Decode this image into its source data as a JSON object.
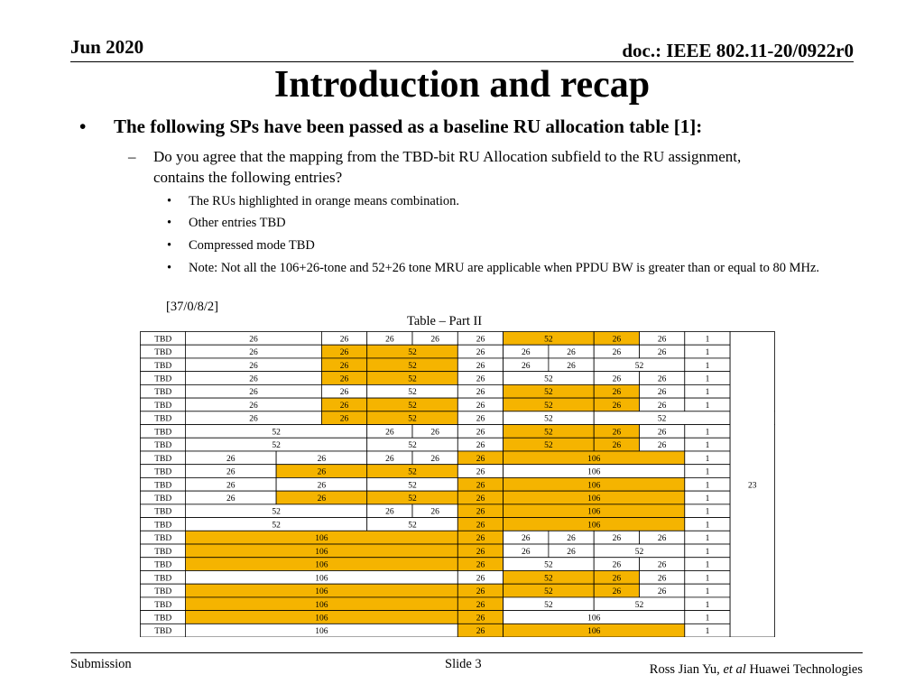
{
  "header": {
    "date": "Jun 2020",
    "doc": "doc.: IEEE 802.11-20/0922r0"
  },
  "title": "Introduction and recap",
  "bullet1": "The following SPs have been passed as a baseline RU allocation table [1]:",
  "bullet2": "Do you agree that the mapping from the TBD-bit RU Allocation subfield to the RU assignment, contains the following entries?",
  "sub_bullets": [
    "The RUs highlighted in orange means combination.",
    "Other entries TBD",
    "Compressed mode TBD",
    "Note: Not all the 106+26-tone and 52+26 tone MRU are applicable when PPDU BW is greater than or equal to 80 MHz."
  ],
  "vote_code": "[37/0/8/2]",
  "table": {
    "caption": "Table – Part II",
    "merged_count": "23",
    "highlight_color": "#f5b400",
    "rows": [
      [
        [
          "TBD",
          1,
          0
        ],
        [
          "26",
          3,
          0
        ],
        [
          "26",
          1,
          0
        ],
        [
          "26",
          1,
          0
        ],
        [
          "26",
          1,
          0
        ],
        [
          "26",
          1,
          0
        ],
        [
          "52",
          2,
          1
        ],
        [
          "26",
          1,
          1
        ],
        [
          "26",
          1,
          0
        ],
        [
          "1",
          1,
          0
        ]
      ],
      [
        [
          "TBD",
          1,
          0
        ],
        [
          "26",
          3,
          0
        ],
        [
          "26",
          1,
          1
        ],
        [
          "52",
          2,
          1
        ],
        [
          "26",
          1,
          0
        ],
        [
          "26",
          1,
          0
        ],
        [
          "26",
          1,
          0
        ],
        [
          "26",
          1,
          0
        ],
        [
          "26",
          1,
          0
        ],
        [
          "1",
          1,
          0
        ]
      ],
      [
        [
          "TBD",
          1,
          0
        ],
        [
          "26",
          3,
          0
        ],
        [
          "26",
          1,
          1
        ],
        [
          "52",
          2,
          1
        ],
        [
          "26",
          1,
          0
        ],
        [
          "26",
          1,
          0
        ],
        [
          "26",
          1,
          0
        ],
        [
          "52",
          2,
          0
        ],
        [
          "1",
          1,
          0
        ]
      ],
      [
        [
          "TBD",
          1,
          0
        ],
        [
          "26",
          3,
          0
        ],
        [
          "26",
          1,
          1
        ],
        [
          "52",
          2,
          1
        ],
        [
          "26",
          1,
          0
        ],
        [
          "52",
          2,
          0
        ],
        [
          "26",
          1,
          0
        ],
        [
          "26",
          1,
          0
        ],
        [
          "1",
          1,
          0
        ]
      ],
      [
        [
          "TBD",
          1,
          0
        ],
        [
          "26",
          3,
          0
        ],
        [
          "26",
          1,
          0
        ],
        [
          "52",
          2,
          0
        ],
        [
          "26",
          1,
          0
        ],
        [
          "52",
          2,
          1
        ],
        [
          "26",
          1,
          1
        ],
        [
          "26",
          1,
          0
        ],
        [
          "1",
          1,
          0
        ]
      ],
      [
        [
          "TBD",
          1,
          0
        ],
        [
          "26",
          3,
          0
        ],
        [
          "26",
          1,
          1
        ],
        [
          "52",
          2,
          1
        ],
        [
          "26",
          1,
          0
        ],
        [
          "52",
          2,
          1
        ],
        [
          "26",
          1,
          1
        ],
        [
          "26",
          1,
          0
        ],
        [
          "1",
          1,
          0
        ]
      ],
      [
        [
          "TBD",
          1,
          0
        ],
        [
          "26",
          3,
          0
        ],
        [
          "26",
          1,
          1
        ],
        [
          "52",
          2,
          1
        ],
        [
          "26",
          1,
          0
        ],
        [
          "52",
          2,
          0
        ],
        [
          "52",
          3,
          0
        ],
        [
          "1",
          1,
          0
        ]
      ],
      [
        [
          "TBD",
          1,
          0
        ],
        [
          "52",
          4,
          0
        ],
        [
          "26",
          1,
          0
        ],
        [
          "26",
          1,
          0
        ],
        [
          "26",
          1,
          0
        ],
        [
          "52",
          2,
          1
        ],
        [
          "26",
          1,
          1
        ],
        [
          "26",
          1,
          0
        ],
        [
          "1",
          1,
          0
        ]
      ],
      [
        [
          "TBD",
          1,
          0
        ],
        [
          "52",
          4,
          0
        ],
        [
          "52",
          2,
          0
        ],
        [
          "26",
          1,
          0
        ],
        [
          "52",
          2,
          1
        ],
        [
          "26",
          1,
          1
        ],
        [
          "26",
          1,
          0
        ],
        [
          "1",
          1,
          0
        ]
      ],
      [
        [
          "TBD",
          1,
          0
        ],
        [
          "26",
          2,
          0
        ],
        [
          "26",
          2,
          0
        ],
        [
          "26",
          1,
          0
        ],
        [
          "26",
          1,
          0
        ],
        [
          "26",
          1,
          1
        ],
        [
          "106",
          4,
          1
        ],
        [
          "1",
          1,
          0
        ]
      ],
      [
        [
          "TBD",
          1,
          0
        ],
        [
          "26",
          2,
          0
        ],
        [
          "26",
          2,
          1
        ],
        [
          "52",
          2,
          1
        ],
        [
          "26",
          1,
          0
        ],
        [
          "106",
          4,
          0
        ],
        [
          "1",
          1,
          0
        ]
      ],
      [
        [
          "TBD",
          1,
          0
        ],
        [
          "26",
          2,
          0
        ],
        [
          "26",
          2,
          0
        ],
        [
          "52",
          2,
          0
        ],
        [
          "26",
          1,
          1
        ],
        [
          "106",
          4,
          1
        ],
        [
          "1",
          1,
          0
        ]
      ],
      [
        [
          "TBD",
          1,
          0
        ],
        [
          "26",
          2,
          0
        ],
        [
          "26",
          2,
          1
        ],
        [
          "52",
          2,
          1
        ],
        [
          "26",
          1,
          1
        ],
        [
          "106",
          4,
          1
        ],
        [
          "1",
          1,
          0
        ]
      ],
      [
        [
          "TBD",
          1,
          0
        ],
        [
          "52",
          4,
          0
        ],
        [
          "26",
          1,
          0
        ],
        [
          "26",
          1,
          0
        ],
        [
          "26",
          1,
          1
        ],
        [
          "106",
          4,
          1
        ],
        [
          "1",
          1,
          0
        ]
      ],
      [
        [
          "TBD",
          1,
          0
        ],
        [
          "52",
          4,
          0
        ],
        [
          "52",
          2,
          0
        ],
        [
          "26",
          1,
          1
        ],
        [
          "106",
          4,
          1
        ],
        [
          "1",
          1,
          0
        ]
      ],
      [
        [
          "TBD",
          1,
          0
        ],
        [
          "106",
          6,
          1
        ],
        [
          "26",
          1,
          1
        ],
        [
          "26",
          1,
          0
        ],
        [
          "26",
          1,
          0
        ],
        [
          "26",
          1,
          0
        ],
        [
          "26",
          1,
          0
        ],
        [
          "1",
          1,
          0
        ]
      ],
      [
        [
          "TBD",
          1,
          0
        ],
        [
          "106",
          6,
          1
        ],
        [
          "26",
          1,
          1
        ],
        [
          "26",
          1,
          0
        ],
        [
          "26",
          1,
          0
        ],
        [
          "52",
          2,
          0
        ],
        [
          "1",
          1,
          0
        ]
      ],
      [
        [
          "TBD",
          1,
          0
        ],
        [
          "106",
          6,
          1
        ],
        [
          "26",
          1,
          1
        ],
        [
          "52",
          2,
          0
        ],
        [
          "26",
          1,
          0
        ],
        [
          "26",
          1,
          0
        ],
        [
          "1",
          1,
          0
        ]
      ],
      [
        [
          "TBD",
          1,
          0
        ],
        [
          "106",
          6,
          0
        ],
        [
          "26",
          1,
          0
        ],
        [
          "52",
          2,
          1
        ],
        [
          "26",
          1,
          1
        ],
        [
          "26",
          1,
          0
        ],
        [
          "1",
          1,
          0
        ]
      ],
      [
        [
          "TBD",
          1,
          0
        ],
        [
          "106",
          6,
          1
        ],
        [
          "26",
          1,
          1
        ],
        [
          "52",
          2,
          1
        ],
        [
          "26",
          1,
          1
        ],
        [
          "26",
          1,
          0
        ],
        [
          "1",
          1,
          0
        ]
      ],
      [
        [
          "TBD",
          1,
          0
        ],
        [
          "106",
          6,
          1
        ],
        [
          "26",
          1,
          1
        ],
        [
          "52",
          2,
          0
        ],
        [
          "52",
          2,
          0
        ],
        [
          "1",
          1,
          0
        ]
      ],
      [
        [
          "TBD",
          1,
          0
        ],
        [
          "106",
          6,
          1
        ],
        [
          "26",
          1,
          1
        ],
        [
          "106",
          4,
          0
        ],
        [
          "1",
          1,
          0
        ]
      ],
      [
        [
          "TBD",
          1,
          0
        ],
        [
          "106",
          6,
          0
        ],
        [
          "26",
          1,
          1
        ],
        [
          "106",
          4,
          1
        ],
        [
          "1",
          1,
          0
        ]
      ]
    ]
  },
  "footer": {
    "left": "Submission",
    "slide": "Slide 3",
    "author": "Ross Jian Yu, ",
    "etal": "et al",
    "org": " Huawei Technologies"
  }
}
